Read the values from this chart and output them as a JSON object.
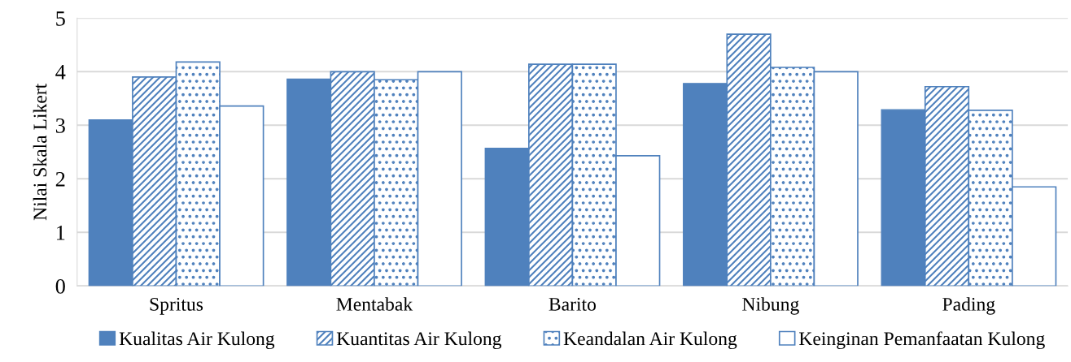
{
  "chart_data": {
    "type": "bar",
    "ylabel": "Nilai Skala Likert",
    "categories": [
      "Spritus",
      "Mentabak",
      "Barito",
      "Nibung",
      "Pading"
    ],
    "series": [
      {
        "name": "Kualitas Air Kulong",
        "color": "#4f81bd",
        "values": [
          3.1,
          3.86,
          2.57,
          3.78,
          3.29
        ]
      },
      {
        "name": "Kuantitas Air Kulong",
        "color": "#4f81bd",
        "values": [
          3.9,
          4.0,
          4.14,
          4.7,
          3.72
        ]
      },
      {
        "name": "Keandalan Air Kulong",
        "color": "#4f81bd",
        "values": [
          4.18,
          3.85,
          4.14,
          4.08,
          3.28
        ]
      },
      {
        "name": "Keinginan Pemanfaatan Kulong",
        "color": "#4f81bd",
        "values": [
          3.36,
          4.0,
          2.43,
          4.0,
          1.85
        ]
      }
    ],
    "ylim": [
      0,
      5
    ],
    "yticks": [
      0,
      1,
      2,
      3,
      4,
      5
    ],
    "grid": "y",
    "legend": "bottom"
  }
}
